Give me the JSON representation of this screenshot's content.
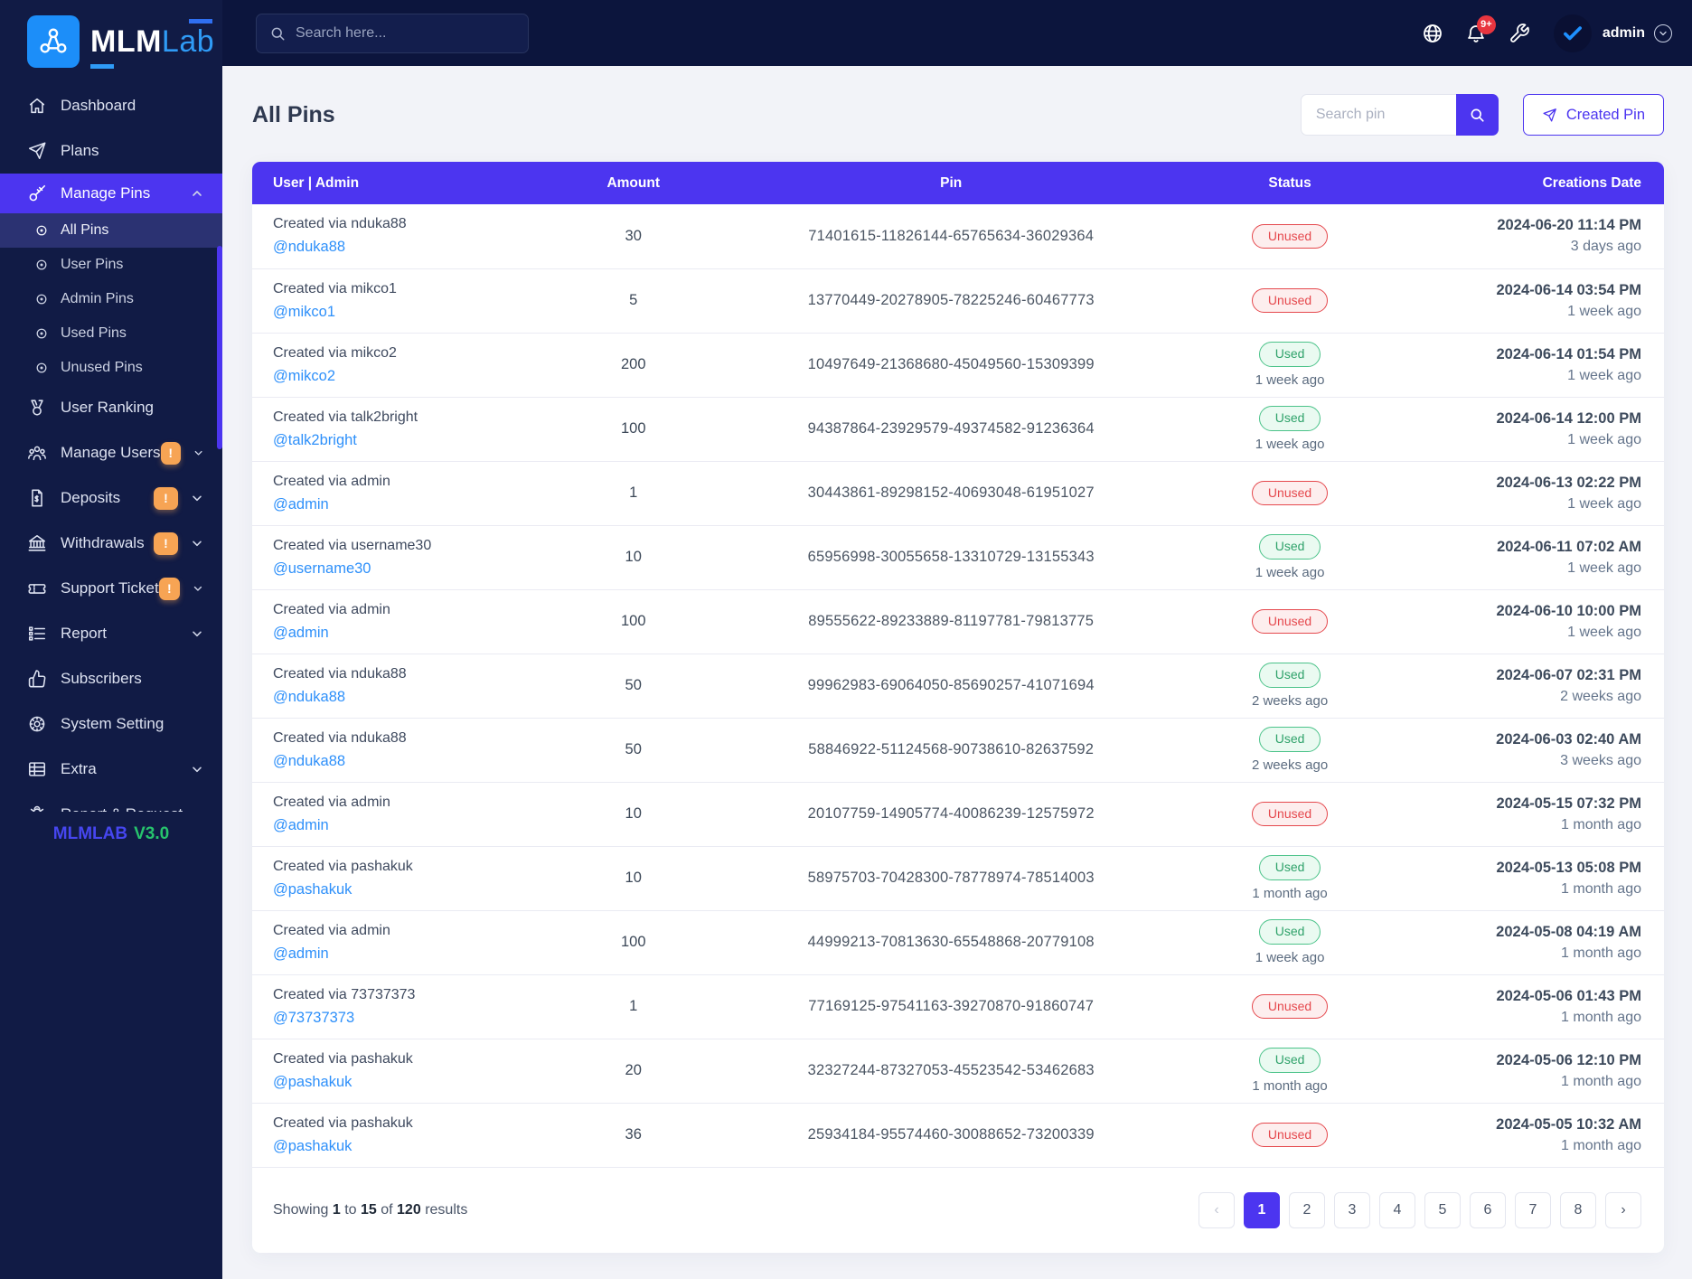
{
  "brand": {
    "name_bold": "MLM",
    "name_light": "Lab",
    "version_label": "MLMLAB",
    "version_number": "V3.0"
  },
  "topbar": {
    "search_placeholder": "Search here...",
    "notification_count": "9+",
    "user_name": "admin"
  },
  "sidebar": {
    "items": [
      {
        "label": "Dashboard",
        "icon": "home"
      },
      {
        "label": "Plans",
        "icon": "send"
      },
      {
        "label": "Manage Pins",
        "icon": "key",
        "active": true,
        "expanded": true,
        "children": [
          "All Pins",
          "User Pins",
          "Admin Pins",
          "Used Pins",
          "Unused Pins"
        ],
        "active_child": "All Pins"
      },
      {
        "label": "User Ranking",
        "icon": "medal"
      },
      {
        "label": "Manage Users",
        "icon": "users",
        "badge": "!",
        "chevron": true
      },
      {
        "label": "Deposits",
        "icon": "file-dollar",
        "badge": "!",
        "chevron": true
      },
      {
        "label": "Withdrawals",
        "icon": "bank",
        "badge": "!",
        "chevron": true
      },
      {
        "label": "Support Ticket",
        "icon": "ticket",
        "badge": "!",
        "chevron": true
      },
      {
        "label": "Report",
        "icon": "list",
        "chevron": true
      },
      {
        "label": "Subscribers",
        "icon": "thumbs-up"
      },
      {
        "label": "System Setting",
        "icon": "gear"
      },
      {
        "label": "Extra",
        "icon": "table",
        "chevron": true
      },
      {
        "label": "Report & Request",
        "icon": "bug"
      }
    ]
  },
  "page": {
    "title": "All Pins",
    "search_placeholder": "Search pin",
    "create_button": "Created Pin"
  },
  "table": {
    "columns": [
      "User | Admin",
      "Amount",
      "Pin",
      "Status",
      "Creations Date"
    ],
    "rows": [
      {
        "created_via": "Created via nduka88",
        "username": "@nduka88",
        "amount": "30",
        "pin": "71401615-11826144-65765634-36029364",
        "status": "Unused",
        "status_ago": "",
        "date": "2024-06-20 11:14 PM",
        "ago": "3 days ago"
      },
      {
        "created_via": "Created via mikco1",
        "username": "@mikco1",
        "amount": "5",
        "pin": "13770449-20278905-78225246-60467773",
        "status": "Unused",
        "status_ago": "",
        "date": "2024-06-14 03:54 PM",
        "ago": "1 week ago"
      },
      {
        "created_via": "Created via mikco2",
        "username": "@mikco2",
        "amount": "200",
        "pin": "10497649-21368680-45049560-15309399",
        "status": "Used",
        "status_ago": "1 week ago",
        "date": "2024-06-14 01:54 PM",
        "ago": "1 week ago"
      },
      {
        "created_via": "Created via talk2bright",
        "username": "@talk2bright",
        "amount": "100",
        "pin": "94387864-23929579-49374582-91236364",
        "status": "Used",
        "status_ago": "1 week ago",
        "date": "2024-06-14 12:00 PM",
        "ago": "1 week ago"
      },
      {
        "created_via": "Created via admin",
        "username": "@admin",
        "amount": "1",
        "pin": "30443861-89298152-40693048-61951027",
        "status": "Unused",
        "status_ago": "",
        "date": "2024-06-13 02:22 PM",
        "ago": "1 week ago"
      },
      {
        "created_via": "Created via username30",
        "username": "@username30",
        "amount": "10",
        "pin": "65956998-30055658-13310729-13155343",
        "status": "Used",
        "status_ago": "1 week ago",
        "date": "2024-06-11 07:02 AM",
        "ago": "1 week ago"
      },
      {
        "created_via": "Created via admin",
        "username": "@admin",
        "amount": "100",
        "pin": "89555622-89233889-81197781-79813775",
        "status": "Unused",
        "status_ago": "",
        "date": "2024-06-10 10:00 PM",
        "ago": "1 week ago"
      },
      {
        "created_via": "Created via nduka88",
        "username": "@nduka88",
        "amount": "50",
        "pin": "99962983-69064050-85690257-41071694",
        "status": "Used",
        "status_ago": "2 weeks ago",
        "date": "2024-06-07 02:31 PM",
        "ago": "2 weeks ago"
      },
      {
        "created_via": "Created via nduka88",
        "username": "@nduka88",
        "amount": "50",
        "pin": "58846922-51124568-90738610-82637592",
        "status": "Used",
        "status_ago": "2 weeks ago",
        "date": "2024-06-03 02:40 AM",
        "ago": "3 weeks ago"
      },
      {
        "created_via": "Created via admin",
        "username": "@admin",
        "amount": "10",
        "pin": "20107759-14905774-40086239-12575972",
        "status": "Unused",
        "status_ago": "",
        "date": "2024-05-15 07:32 PM",
        "ago": "1 month ago"
      },
      {
        "created_via": "Created via pashakuk",
        "username": "@pashakuk",
        "amount": "10",
        "pin": "58975703-70428300-78778974-78514003",
        "status": "Used",
        "status_ago": "1 month ago",
        "date": "2024-05-13 05:08 PM",
        "ago": "1 month ago"
      },
      {
        "created_via": "Created via admin",
        "username": "@admin",
        "amount": "100",
        "pin": "44999213-70813630-65548868-20779108",
        "status": "Used",
        "status_ago": "1 week ago",
        "date": "2024-05-08 04:19 AM",
        "ago": "1 month ago"
      },
      {
        "created_via": "Created via 73737373",
        "username": "@73737373",
        "amount": "1",
        "pin": "77169125-97541163-39270870-91860747",
        "status": "Unused",
        "status_ago": "",
        "date": "2024-05-06 01:43 PM",
        "ago": "1 month ago"
      },
      {
        "created_via": "Created via pashakuk",
        "username": "@pashakuk",
        "amount": "20",
        "pin": "32327244-87327053-45523542-53462683",
        "status": "Used",
        "status_ago": "1 month ago",
        "date": "2024-05-06 12:10 PM",
        "ago": "1 month ago"
      },
      {
        "created_via": "Created via pashakuk",
        "username": "@pashakuk",
        "amount": "36",
        "pin": "25934184-95574460-30088652-73200339",
        "status": "Unused",
        "status_ago": "",
        "date": "2024-05-05 10:32 AM",
        "ago": "1 month ago"
      }
    ]
  },
  "pagination": {
    "showing_word": "Showing",
    "to_word": "to",
    "of_word": "of",
    "results_word": "results",
    "from": "1",
    "to": "15",
    "total": "120",
    "prev_label": "‹",
    "next_label": "›",
    "pages": [
      "1",
      "2",
      "3",
      "4",
      "5",
      "6",
      "7",
      "8"
    ],
    "active_page": "1"
  },
  "colors": {
    "accent": "#4c35f0",
    "sidebar": "#111b45",
    "topbar": "#0c153d",
    "used": "#2fa26a",
    "unused": "#e5484d",
    "badge_orange": "#f7a454",
    "link_blue": "#2e90fa"
  }
}
